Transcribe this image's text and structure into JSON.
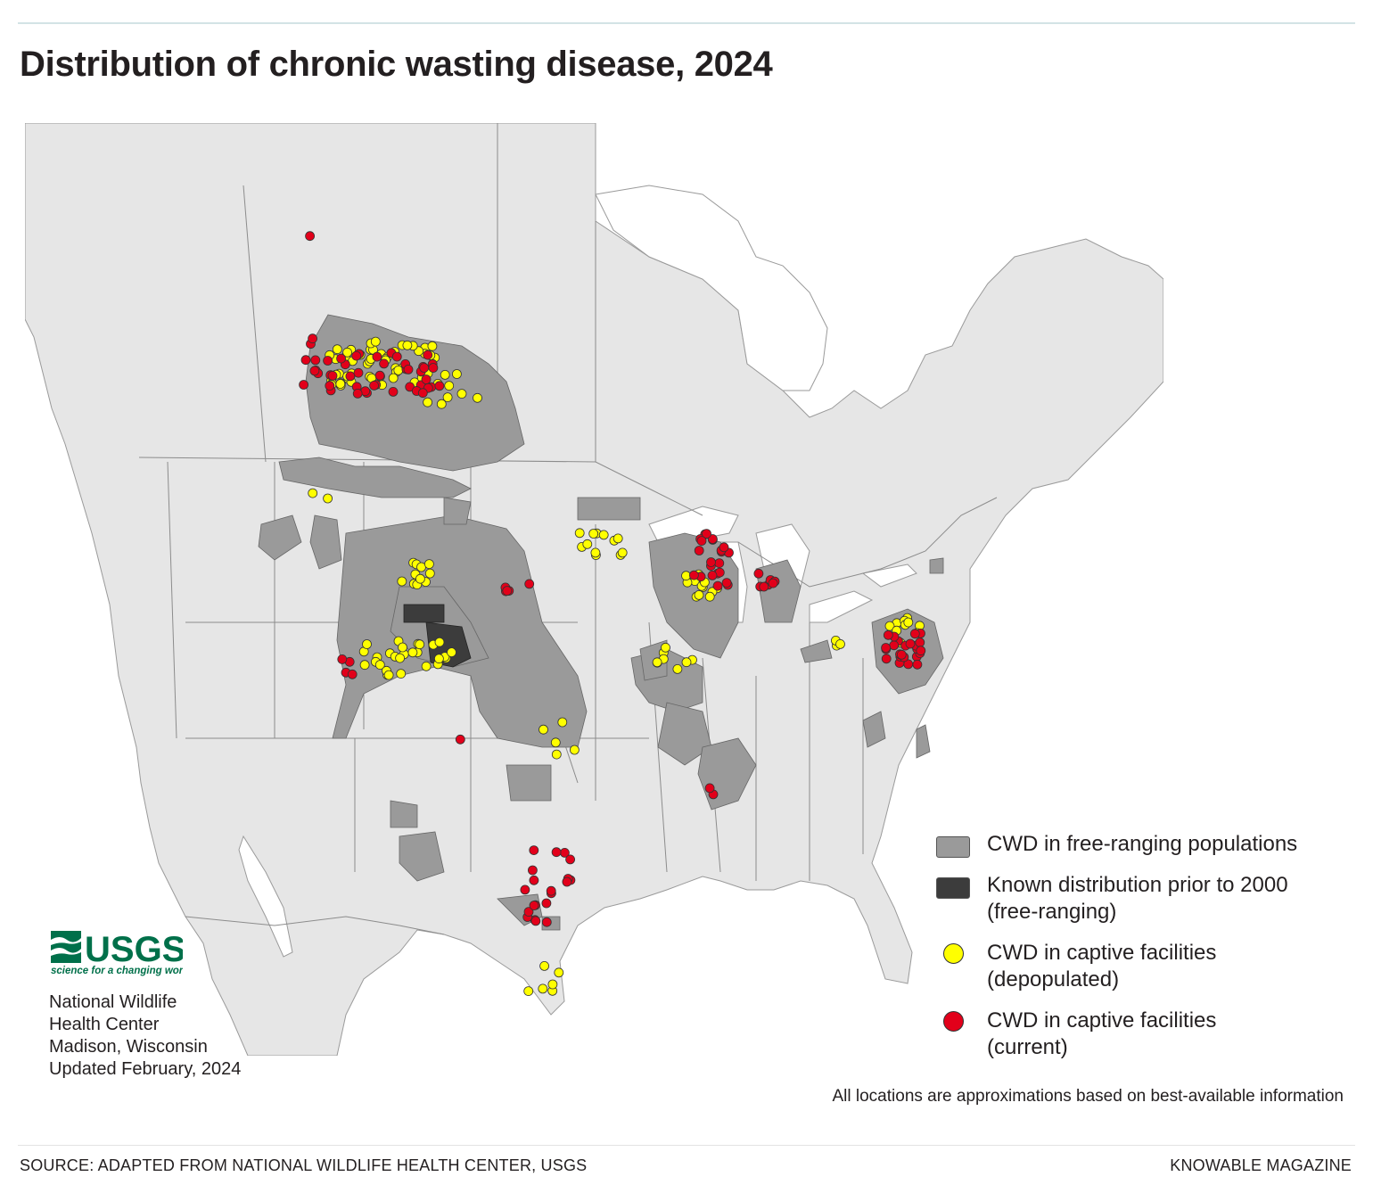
{
  "title": "Distribution of chronic wasting disease, 2024",
  "colors": {
    "land": "#e6e6e6",
    "water": "#ffffff",
    "borders": "#8c8c8c",
    "free_ranging": "#9a9a9a",
    "prior_2000": "#3c3c3c",
    "depopulated": "#ffff00",
    "current": "#e2001a",
    "usgs_green": "#00704a"
  },
  "legend": {
    "free_ranging": "CWD in free-ranging populations",
    "prior_2000_line1": "Known distribution prior to 2000",
    "prior_2000_line2": "(free-ranging)",
    "depopulated_line1": "CWD in captive facilities",
    "depopulated_line2": "(depopulated)",
    "current_line1": "CWD in captive facilities",
    "current_line2": "(current)"
  },
  "disclaimer": "All locations are approximations based on best-available information",
  "logo": {
    "wordmark": "USGS",
    "tagline": "science for a changing world"
  },
  "credit": {
    "line1": "National Wildlife",
    "line2": "Health Center",
    "line3": "Madison, Wisconsin",
    "line4": "Updated February, 2024"
  },
  "source": "SOURCE: ADAPTED FROM NATIONAL WILDLIFE HEALTH CENTER, USGS",
  "publisher": "KNOWABLE MAGAZINE"
}
